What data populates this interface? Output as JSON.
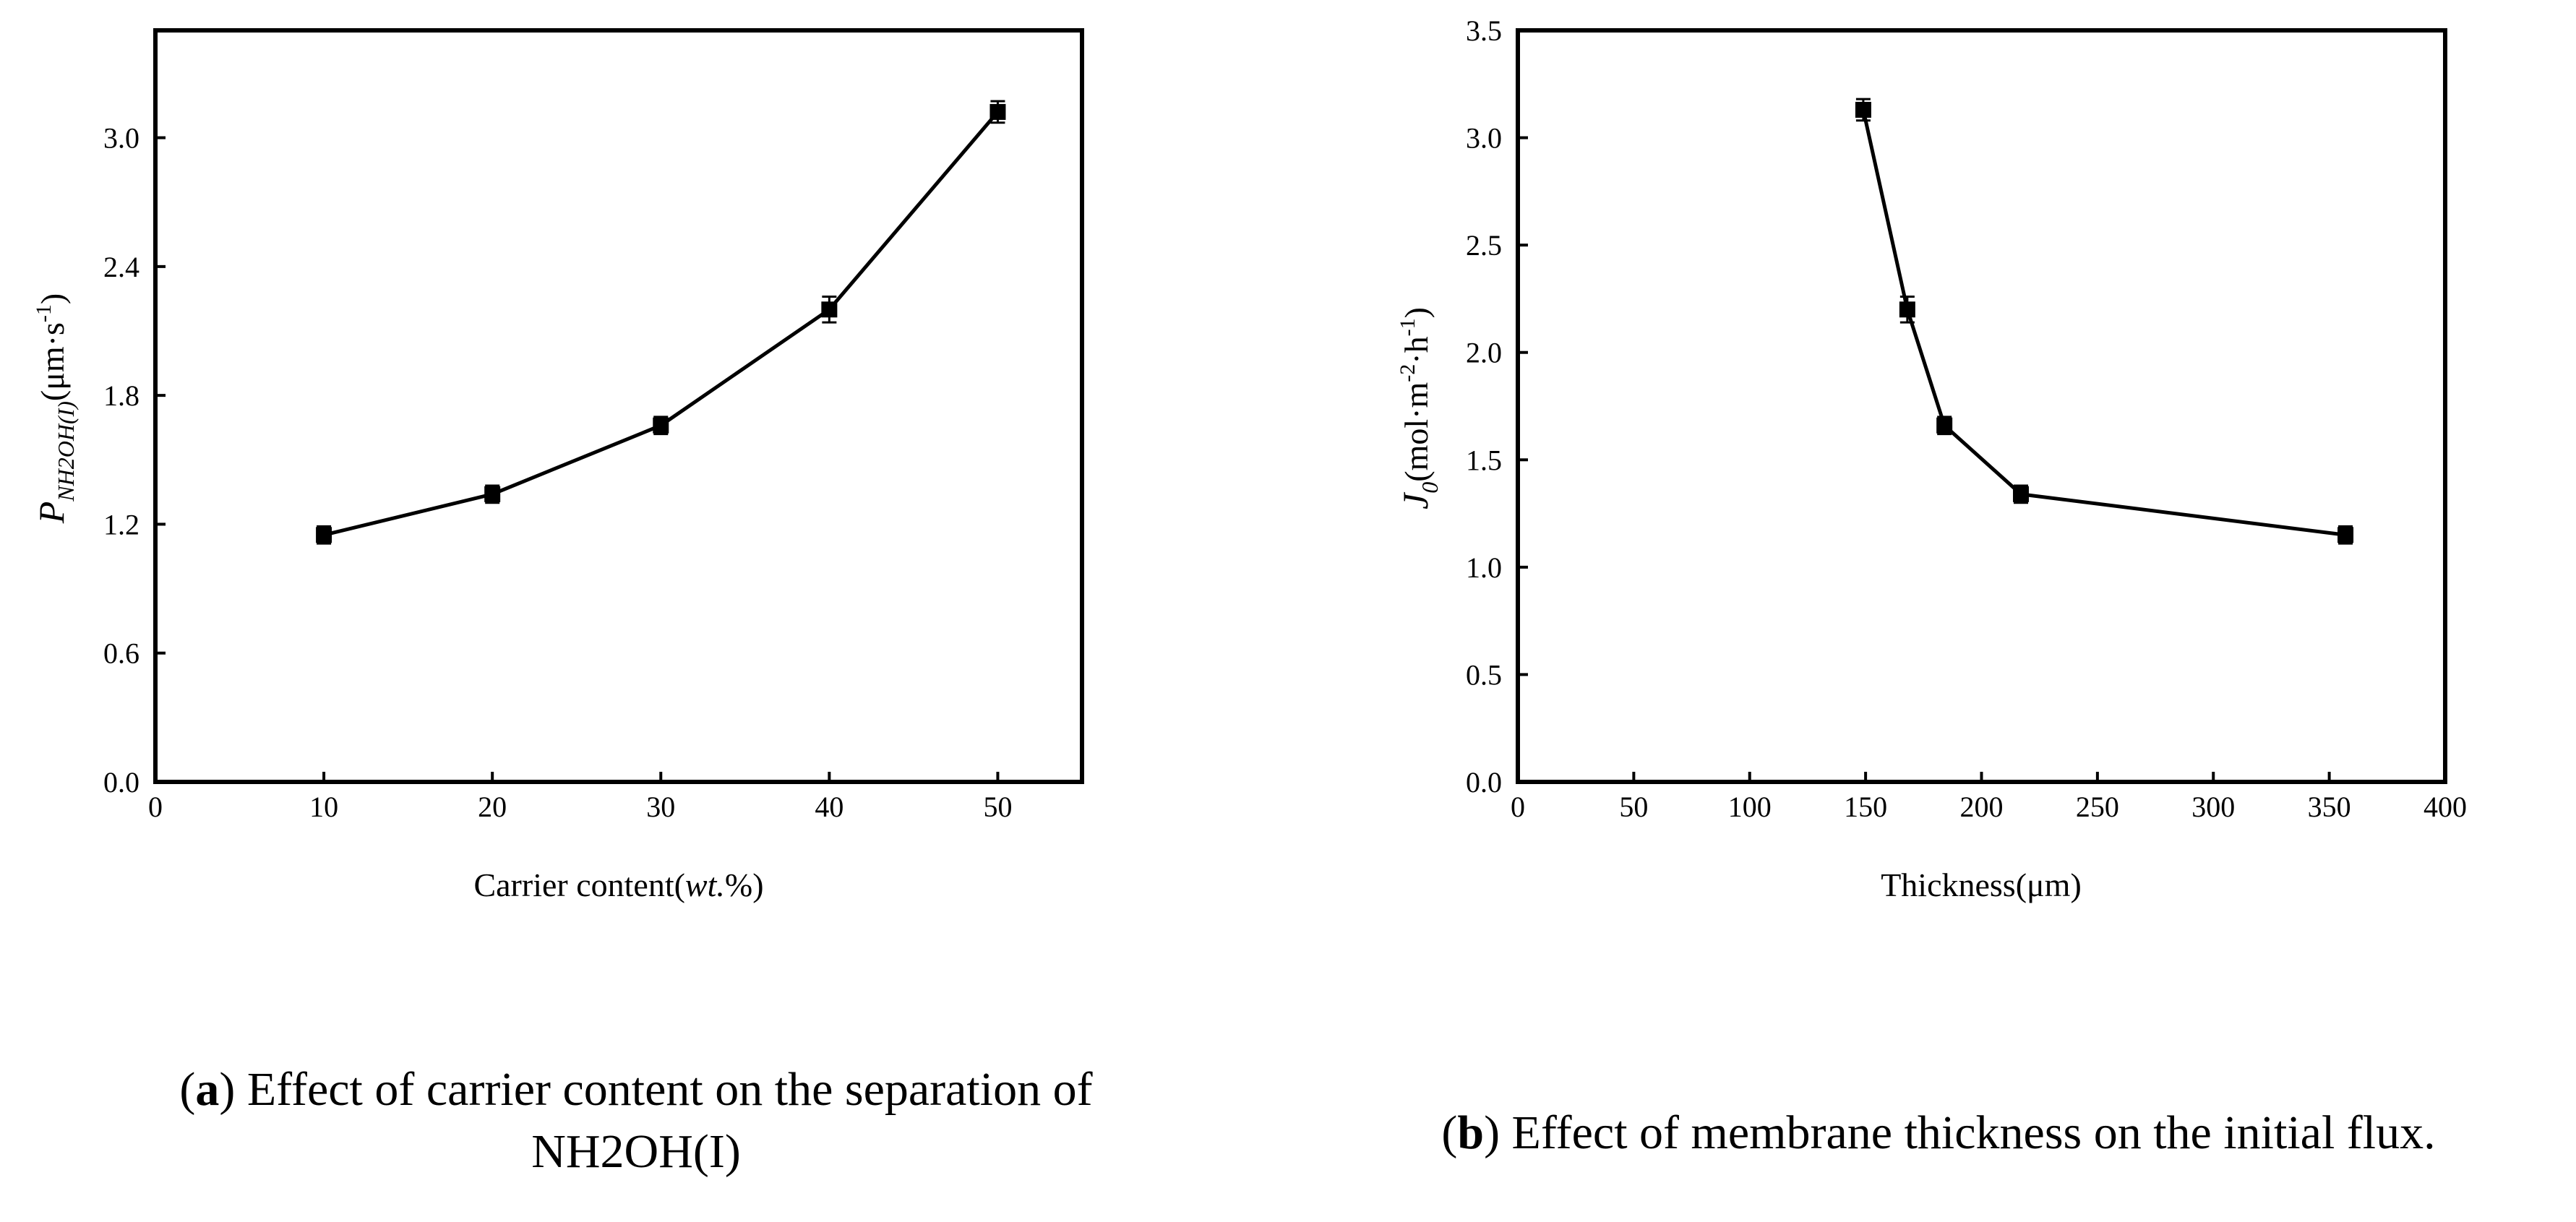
{
  "chart_data": [
    {
      "type": "line",
      "panel": "a",
      "x": [
        10,
        20,
        30,
        40,
        50
      ],
      "series": [
        {
          "name": "P_NH2OH(I)",
          "values": [
            1.15,
            1.34,
            1.66,
            2.2,
            3.12
          ],
          "errors": [
            0.04,
            0.04,
            0.04,
            0.06,
            0.05
          ]
        }
      ],
      "xlim": [
        0,
        55
      ],
      "ylim": [
        0.0,
        3.5
      ],
      "xticks": [
        0,
        10,
        20,
        30,
        40,
        50
      ],
      "yticks": [
        0.0,
        0.6,
        1.2,
        1.8,
        2.4,
        3.0
      ],
      "xtick_labels": [
        "0",
        "10",
        "20",
        "30",
        "40",
        "50"
      ],
      "ytick_labels": [
        "0.0",
        "0.6",
        "1.2",
        "1.8",
        "2.4",
        "3.0"
      ],
      "xlabel_main": "Carrier content(",
      "xlabel_italic": "wt.",
      "xlabel_tail": "%)",
      "ylabel_main": "P",
      "ylabel_sub": "NH2OH(I)",
      "ylabel_units": "(μm·s",
      "ylabel_sup": "-1",
      "ylabel_close": ")",
      "marker": "square",
      "grid": false
    },
    {
      "type": "line",
      "panel": "b",
      "x": [
        149,
        168,
        184,
        217,
        357
      ],
      "series": [
        {
          "name": "J0",
          "values": [
            3.13,
            2.2,
            1.66,
            1.34,
            1.15
          ],
          "errors": [
            0.05,
            0.06,
            0.04,
            0.04,
            0.04
          ]
        }
      ],
      "xlim": [
        0,
        400
      ],
      "ylim": [
        0.0,
        3.5
      ],
      "xticks": [
        0,
        50,
        100,
        150,
        200,
        250,
        300,
        350,
        400
      ],
      "yticks": [
        0.0,
        0.5,
        1.0,
        1.5,
        2.0,
        2.5,
        3.0,
        3.5
      ],
      "xtick_labels": [
        "0",
        "50",
        "100",
        "150",
        "200",
        "250",
        "300",
        "350",
        "400"
      ],
      "ytick_labels": [
        "0.0",
        "0.5",
        "1.0",
        "1.5",
        "2.0",
        "2.5",
        "3.0",
        "3.5"
      ],
      "xlabel": "Thickness(μm)",
      "ylabel_main": "J",
      "ylabel_sub": "0",
      "ylabel_units": "(mol·m",
      "ylabel_sup1": "-2",
      "ylabel_mid": "·h",
      "ylabel_sup2": "-1",
      "ylabel_close": ")",
      "marker": "square",
      "grid": false
    }
  ],
  "captions": {
    "a_letter": "a",
    "a_line1": " Effect of carrier content on the separation of",
    "a_line2": "NH2OH(I)",
    "b_letter": "b",
    "b_text": " Effect of membrane thickness on the initial flux."
  }
}
